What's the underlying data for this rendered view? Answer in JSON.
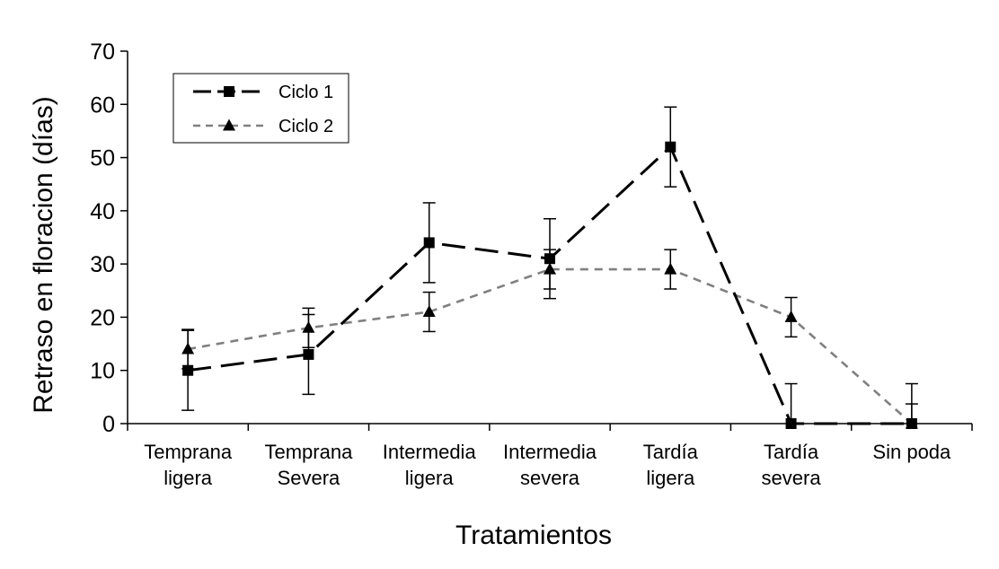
{
  "chart_data": {
    "type": "line",
    "title": "",
    "xlabel": "Tratamientos",
    "ylabel": "Retraso en floracion (días)",
    "ylim": [
      0,
      70
    ],
    "yticks": [
      0,
      10,
      20,
      30,
      40,
      50,
      60,
      70
    ],
    "grid": false,
    "legend_position": "top-left",
    "categories": [
      [
        "Temprana",
        "ligera"
      ],
      [
        "Temprana",
        "Severa"
      ],
      [
        "Intermedia",
        "ligera"
      ],
      [
        "Intermedia",
        "severa"
      ],
      [
        "Tardía",
        "ligera"
      ],
      [
        "Tardía",
        "severa"
      ],
      [
        "Sin poda"
      ]
    ],
    "series": [
      {
        "name": "Ciclo 1",
        "color": "#000000",
        "marker": "square",
        "line_style": "long-dash",
        "values": [
          10,
          13,
          34,
          31,
          52,
          0,
          0
        ],
        "error": [
          7.5,
          7.5,
          7.5,
          7.5,
          7.5,
          7.5,
          7.5
        ]
      },
      {
        "name": "Ciclo 2",
        "color": "#808080",
        "marker": "triangle",
        "line_style": "short-dash",
        "values": [
          14,
          18,
          21,
          29,
          29,
          20,
          0
        ],
        "error": [
          3.7,
          3.7,
          3.7,
          3.7,
          3.7,
          3.7,
          3.7
        ]
      }
    ]
  }
}
